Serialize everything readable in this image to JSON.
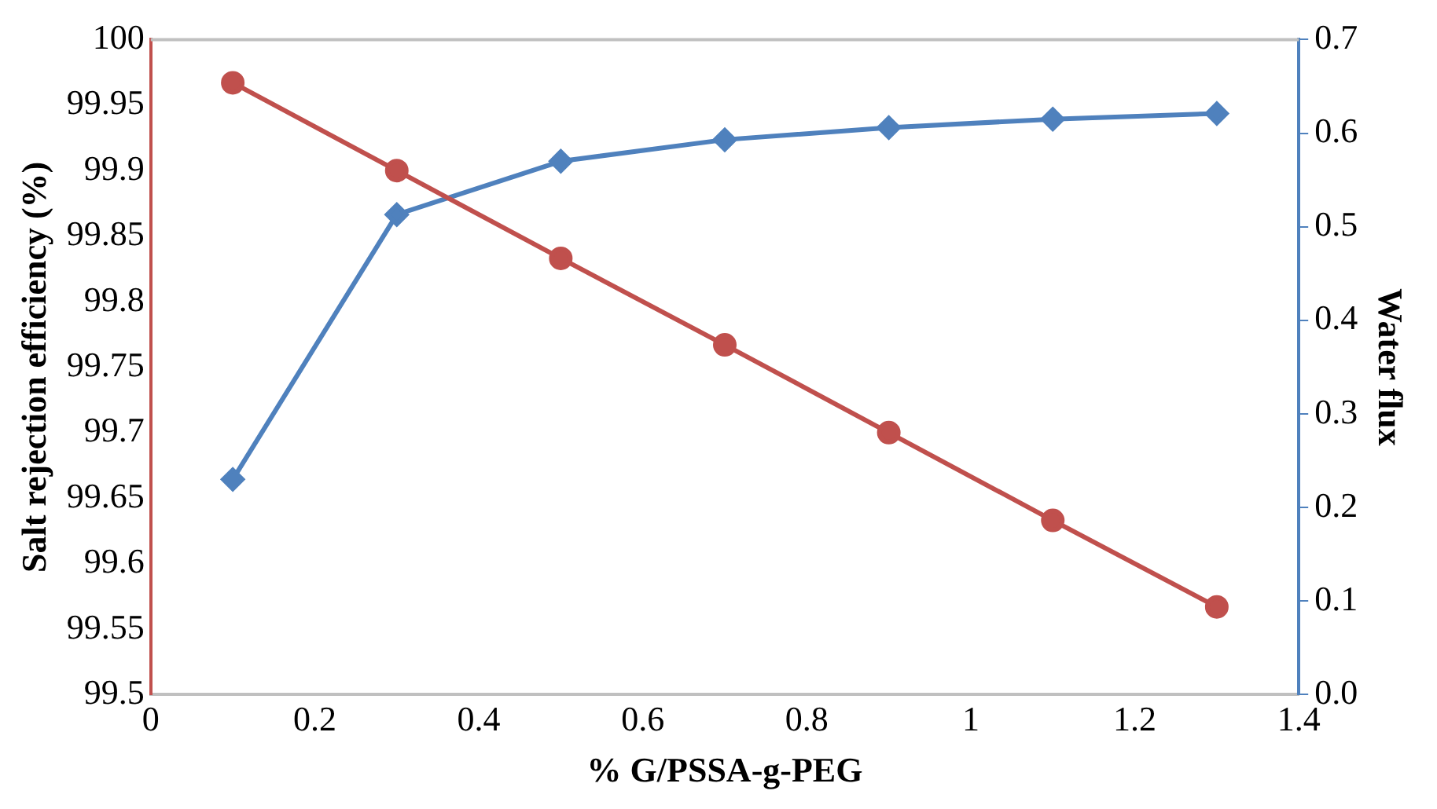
{
  "chart_data": {
    "type": "line",
    "xlabel": "% G/PSSA-g-PEG",
    "ylabel": "Salt rejection efficiency (%)",
    "y2label": "Water flux",
    "x": [
      0.1,
      0.3,
      0.5,
      0.7,
      0.9,
      1.1,
      1.3
    ],
    "series": [
      {
        "color": "#c0504d",
        "marker": "circle",
        "values": [
          99.967,
          99.9,
          99.833,
          99.767,
          99.7,
          99.633,
          99.567
        ]
      },
      {
        "color": "#4f81bd",
        "marker": "diamond",
        "axis": "y2",
        "values": [
          0.23,
          0.513,
          0.57,
          0.593,
          0.606,
          0.615,
          0.621
        ]
      }
    ],
    "xlim": [
      0,
      1.4
    ],
    "xticks": [
      0,
      0.2,
      0.4,
      0.6,
      0.8,
      1,
      1.2,
      1.4
    ],
    "ylim": [
      99.5,
      100
    ],
    "yticks": [
      99.5,
      99.55,
      99.6,
      99.65,
      99.7,
      99.75,
      99.8,
      99.85,
      99.9,
      99.95,
      100
    ],
    "y2lim": [
      0,
      0.7
    ],
    "y2ticks": [
      {
        "value": 0,
        "label": "0.0"
      },
      0.1,
      0.2,
      0.3,
      0.4,
      0.5,
      0.6,
      0.7
    ],
    "grid": false,
    "legend": false
  }
}
